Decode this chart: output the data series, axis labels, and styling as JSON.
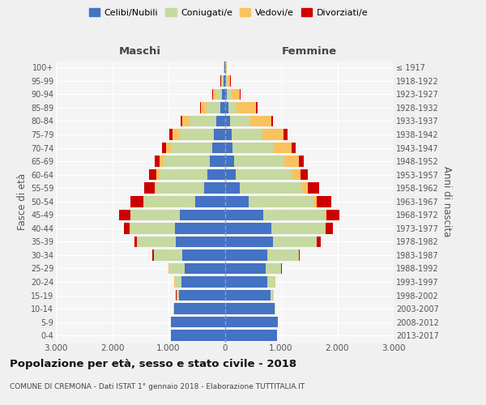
{
  "age_groups": [
    "0-4",
    "5-9",
    "10-14",
    "15-19",
    "20-24",
    "25-29",
    "30-34",
    "35-39",
    "40-44",
    "45-49",
    "50-54",
    "55-59",
    "60-64",
    "65-69",
    "70-74",
    "75-79",
    "80-84",
    "85-89",
    "90-94",
    "95-99",
    "100+"
  ],
  "birth_years": [
    "2013-2017",
    "2008-2012",
    "2003-2007",
    "1998-2002",
    "1993-1997",
    "1988-1992",
    "1983-1987",
    "1978-1982",
    "1973-1977",
    "1968-1972",
    "1963-1967",
    "1958-1962",
    "1953-1957",
    "1948-1952",
    "1943-1947",
    "1938-1942",
    "1933-1937",
    "1928-1932",
    "1923-1927",
    "1918-1922",
    "≤ 1917"
  ],
  "maschi": {
    "celibi": [
      950,
      950,
      900,
      820,
      770,
      710,
      760,
      870,
      880,
      800,
      530,
      370,
      310,
      270,
      230,
      200,
      150,
      80,
      50,
      20,
      10
    ],
    "coniugati": [
      5,
      5,
      10,
      40,
      120,
      280,
      500,
      680,
      800,
      870,
      900,
      850,
      850,
      820,
      720,
      600,
      480,
      250,
      100,
      30,
      10
    ],
    "vedovi": [
      0,
      0,
      0,
      2,
      5,
      5,
      3,
      5,
      5,
      10,
      20,
      30,
      50,
      70,
      100,
      130,
      120,
      100,
      60,
      20,
      5
    ],
    "divorziati": [
      0,
      0,
      0,
      2,
      5,
      10,
      20,
      50,
      100,
      200,
      230,
      180,
      130,
      90,
      70,
      50,
      30,
      15,
      10,
      5,
      2
    ]
  },
  "femmine": {
    "nubili": [
      930,
      940,
      890,
      820,
      760,
      720,
      750,
      850,
      830,
      680,
      430,
      270,
      200,
      160,
      140,
      120,
      100,
      60,
      40,
      20,
      10
    ],
    "coniugate": [
      5,
      5,
      10,
      50,
      130,
      280,
      560,
      780,
      950,
      1100,
      1150,
      1100,
      1000,
      900,
      720,
      550,
      350,
      150,
      80,
      30,
      10
    ],
    "vedove": [
      0,
      0,
      0,
      2,
      3,
      5,
      5,
      10,
      15,
      30,
      50,
      100,
      150,
      250,
      320,
      380,
      380,
      350,
      150,
      50,
      10
    ],
    "divorziate": [
      0,
      0,
      0,
      2,
      5,
      10,
      20,
      60,
      120,
      230,
      260,
      200,
      130,
      90,
      80,
      60,
      30,
      20,
      10,
      5,
      2
    ]
  },
  "colors": {
    "celibi": "#4472c4",
    "coniugati": "#c5d9a0",
    "vedovi": "#f9c25e",
    "divorziati": "#cc0000"
  },
  "xlim": 3000,
  "xticks": [
    -3000,
    -2000,
    -1000,
    0,
    1000,
    2000,
    3000
  ],
  "xticklabels": [
    "3.000",
    "2.000",
    "1.000",
    "0",
    "1.000",
    "2.000",
    "3.000"
  ],
  "title": "Popolazione per età, sesso e stato civile - 2018",
  "subtitle": "COMUNE DI CREMONA - Dati ISTAT 1° gennaio 2018 - Elaborazione TUTTITALIA.IT",
  "xlabel_left": "Maschi",
  "xlabel_right": "Femmine",
  "ylabel": "Fasce di età",
  "ylabel_right": "Anni di nascita",
  "legend_labels": [
    "Celibi/Nubili",
    "Coniugati/e",
    "Vedovi/e",
    "Divorziati/e"
  ],
  "bg_color": "#f0f0f0",
  "plot_bg": "#f5f5f5"
}
